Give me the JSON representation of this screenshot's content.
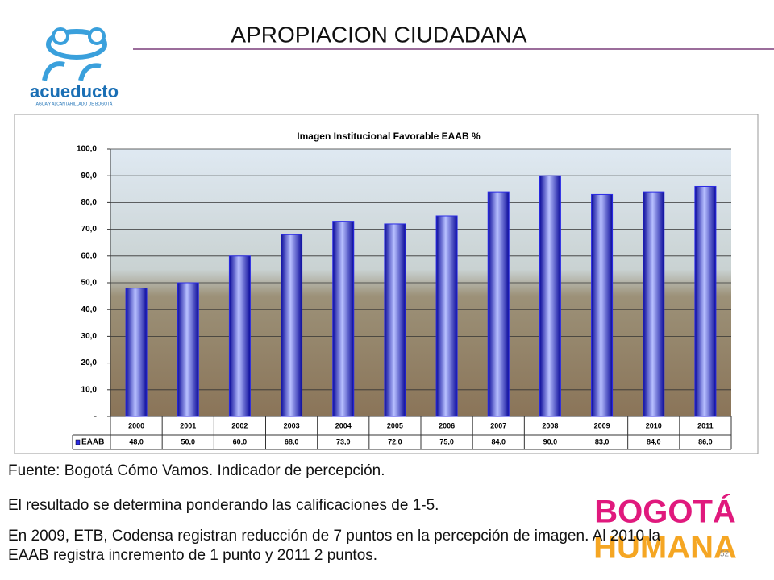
{
  "title": "APROPIACION CIUDADANA",
  "logo_left": {
    "name": "acueducto",
    "tagline": "AGUA Y ALCANTARILLADO DE BOGOTÁ"
  },
  "logo_right": {
    "line1": "BOGOTÁ",
    "line2": "HUMANA"
  },
  "chart_data": {
    "type": "bar",
    "title": "Imagen Institucional Favorable  EAAB %",
    "categories": [
      "2000",
      "2001",
      "2002",
      "2003",
      "2004",
      "2005",
      "2006",
      "2007",
      "2008",
      "2009",
      "2010",
      "2011"
    ],
    "series": [
      {
        "name": "EAAB",
        "color": "#2a2ae6",
        "values": [
          48,
          50,
          60,
          68,
          73,
          72,
          75,
          84,
          90,
          83,
          84,
          86
        ],
        "value_labels": [
          "48,0",
          "50,0",
          "60,0",
          "68,0",
          "73,0",
          "72,0",
          "75,0",
          "84,0",
          "90,0",
          "83,0",
          "84,0",
          "86,0"
        ]
      }
    ],
    "ylim": [
      0,
      100
    ],
    "yticks": [
      {
        "value": 0,
        "label": "-"
      },
      {
        "value": 10,
        "label": "10,0"
      },
      {
        "value": 20,
        "label": "20,0"
      },
      {
        "value": 30,
        "label": "30,0"
      },
      {
        "value": 40,
        "label": "40,0"
      },
      {
        "value": 50,
        "label": "50,0"
      },
      {
        "value": 60,
        "label": "60,0"
      },
      {
        "value": 70,
        "label": "70,0"
      },
      {
        "value": 80,
        "label": "80,0"
      },
      {
        "value": 90,
        "label": "90,0"
      },
      {
        "value": 100,
        "label": "100,0"
      }
    ],
    "grid": true
  },
  "notes": [
    "Fuente: Bogotá Cómo Vamos. Indicador de percepción.",
    "El resultado se determina ponderando las calificaciones de 1-5.",
    "En 2009, ETB, Codensa registran reducción de 7 puntos en la percepción de imagen. Al 2010 la EAAB registra incremento de 1 punto y 2011 2 puntos."
  ],
  "page_number": "52"
}
